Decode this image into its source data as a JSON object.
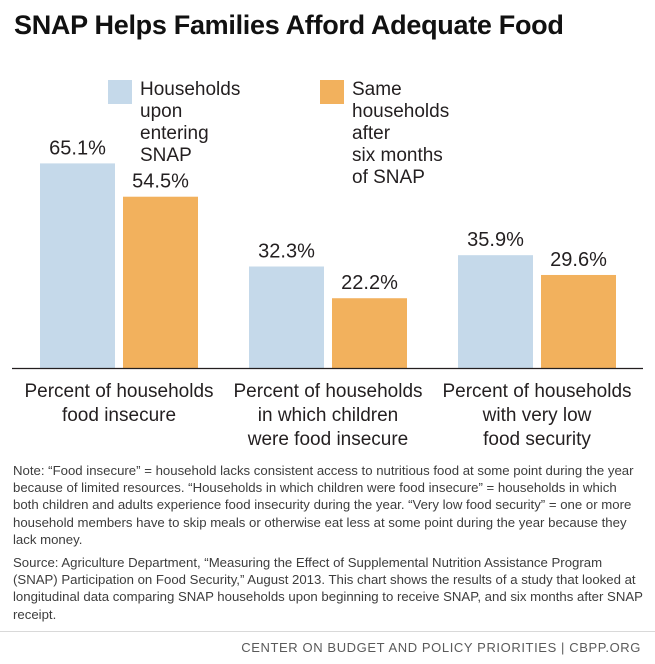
{
  "title": "SNAP Helps Families Afford Adequate Food",
  "colors": {
    "series1": "#c5d9ea",
    "series2": "#f2b15d",
    "axis": "#231f20"
  },
  "chart_data": {
    "type": "bar",
    "title": "SNAP Helps Families Afford Adequate Food",
    "categories": [
      "Percent of households\nfood insecure",
      "Percent of households\nin which children\nwere food insecure",
      "Percent of households\nwith very low\nfood security"
    ],
    "series": [
      {
        "name": "Households upon\nentering SNAP",
        "values": [
          65.1,
          32.3,
          35.9
        ],
        "labels": [
          "65.1%",
          "32.3%",
          "35.9%"
        ],
        "color": "#c5d9ea"
      },
      {
        "name": "Same households after\nsix months of SNAP",
        "values": [
          54.5,
          22.2,
          29.6
        ],
        "labels": [
          "54.5%",
          "22.2%",
          "29.6%"
        ],
        "color": "#f2b15d"
      }
    ],
    "ylim": [
      0,
      70
    ],
    "grid": false,
    "legend_position": "top"
  },
  "note": {
    "note_text": "Note:  “Food insecure” = household lacks consistent access to nutritious food at some point during the year because of limited resources.  “Households in which children were food insecure” = households in which both children and adults experience food insecurity during the year. “Very low food security” = one or more household members have to skip meals or otherwise eat less at some point during the year because they lack money.",
    "source_text": "Source:  Agriculture Department, “Measuring the Effect of Supplemental Nutrition Assistance Program (SNAP) Participation on Food Security,” August 2013.  This chart shows the results of a study that looked at longitudinal data comparing SNAP households upon beginning to receive SNAP, and six months after SNAP receipt."
  },
  "footer": "CENTER ON BUDGET AND POLICY PRIORITIES | CBPP.ORG"
}
